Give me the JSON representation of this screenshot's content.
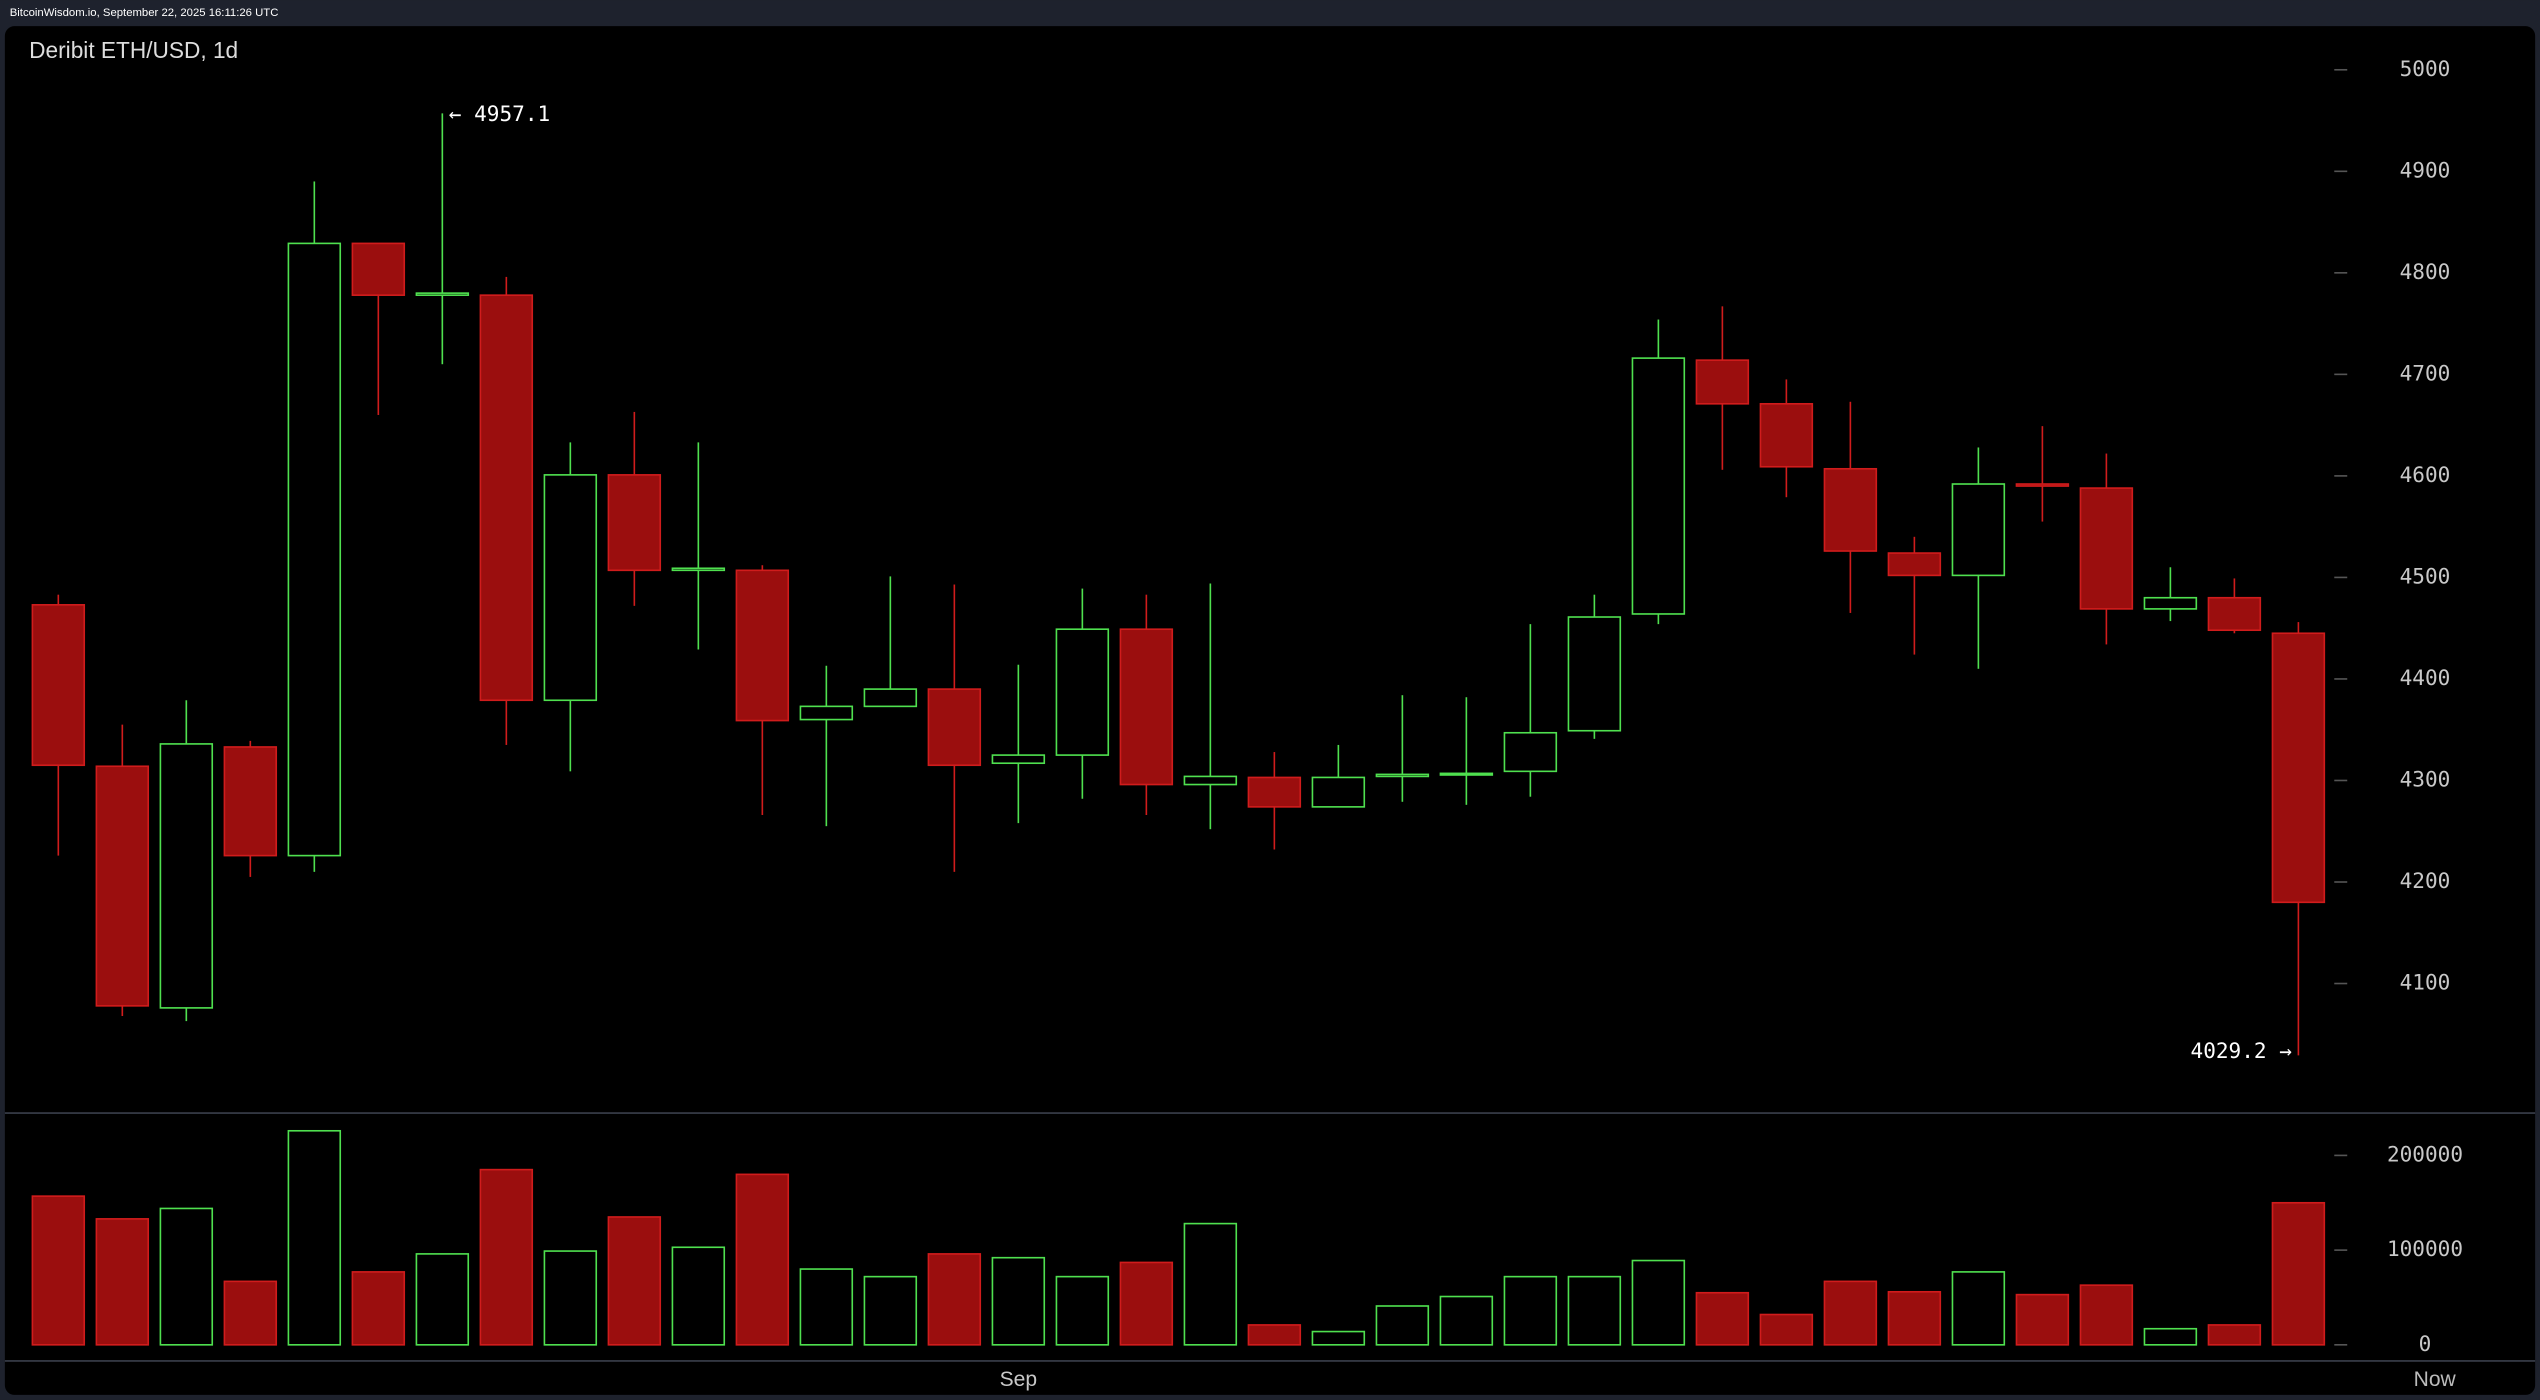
{
  "header": {
    "text": "BitcoinWisdom.io, September 22, 2025 16:11:26 UTC"
  },
  "chart_data": [
    {
      "type": "candlestick",
      "title": "Deribit ETH/USD, 1d",
      "categories": [
        null,
        null,
        null,
        null,
        null,
        null,
        null,
        null,
        null,
        null,
        null,
        null,
        null,
        null,
        null,
        "Sep",
        null,
        null,
        null,
        null,
        null,
        null,
        null,
        null,
        null,
        null,
        null,
        null,
        null,
        null,
        null,
        null,
        null,
        null,
        null,
        null
      ],
      "now_label": "Now",
      "open": [
        4473,
        4314,
        4076,
        4333,
        4226,
        4829,
        4778,
        4778,
        4379,
        4601,
        4507,
        4507,
        4360,
        4373,
        4390,
        4317,
        4325,
        4449,
        4296,
        4303,
        4274,
        4304,
        4306,
        4309,
        4349,
        4464,
        4714,
        4671,
        4607,
        4524,
        4502,
        4592,
        4588,
        4469,
        4480,
        4445
      ],
      "high": [
        4483,
        4355,
        4379,
        4339,
        4890,
        4829,
        4957.1,
        4796,
        4633,
        4663,
        4633,
        4512,
        4413,
        4501,
        4493,
        4414,
        4489,
        4483,
        4494,
        4328,
        4335,
        4384,
        4382,
        4454,
        4483,
        4754,
        4767,
        4695,
        4673,
        4540,
        4628,
        4649,
        4622,
        4510,
        4499,
        4456
      ],
      "low": [
        4226,
        4068,
        4063,
        4205,
        4210,
        4660,
        4710,
        4335,
        4309,
        4472,
        4429,
        4266,
        4255,
        4373,
        4210,
        4258,
        4282,
        4266,
        4252,
        4232,
        4274,
        4279,
        4276,
        4284,
        4341,
        4454,
        4606,
        4579,
        4465,
        4424,
        4410,
        4555,
        4434,
        4457,
        4445,
        4029.2
      ],
      "close": [
        4315,
        4078,
        4336,
        4226,
        4829,
        4778,
        4780,
        4379,
        4601,
        4507,
        4509,
        4359,
        4373,
        4390,
        4315,
        4325,
        4449,
        4296,
        4304,
        4274,
        4303,
        4306,
        4307,
        4347,
        4461,
        4716,
        4671,
        4609,
        4526,
        4502,
        4592,
        4590,
        4469,
        4480,
        4448,
        4180
      ],
      "up_color": "#4fe04f",
      "down_color": "#d01c1c",
      "down_fill": "#9b0e0e",
      "max_label": "← 4957.1",
      "min_label": "4029.2 →",
      "ylim": [
        3974,
        5043
      ],
      "yticks": [
        4100,
        4200,
        4300,
        4400,
        4500,
        4600,
        4700,
        4800,
        4900,
        5000
      ]
    },
    {
      "type": "bar",
      "values": [
        157000,
        133000,
        144000,
        67000,
        226000,
        77000,
        96000,
        185000,
        99000,
        135000,
        103000,
        180000,
        80000,
        72000,
        96000,
        92000,
        72000,
        87000,
        128000,
        21000,
        14000,
        41000,
        51000,
        72000,
        72000,
        89000,
        55000,
        32000,
        67000,
        56000,
        77000,
        53000,
        63000,
        17000,
        21000,
        150000
      ],
      "ylim": [
        -17000,
        243000
      ],
      "yticks": [
        0,
        100000,
        200000
      ]
    }
  ]
}
